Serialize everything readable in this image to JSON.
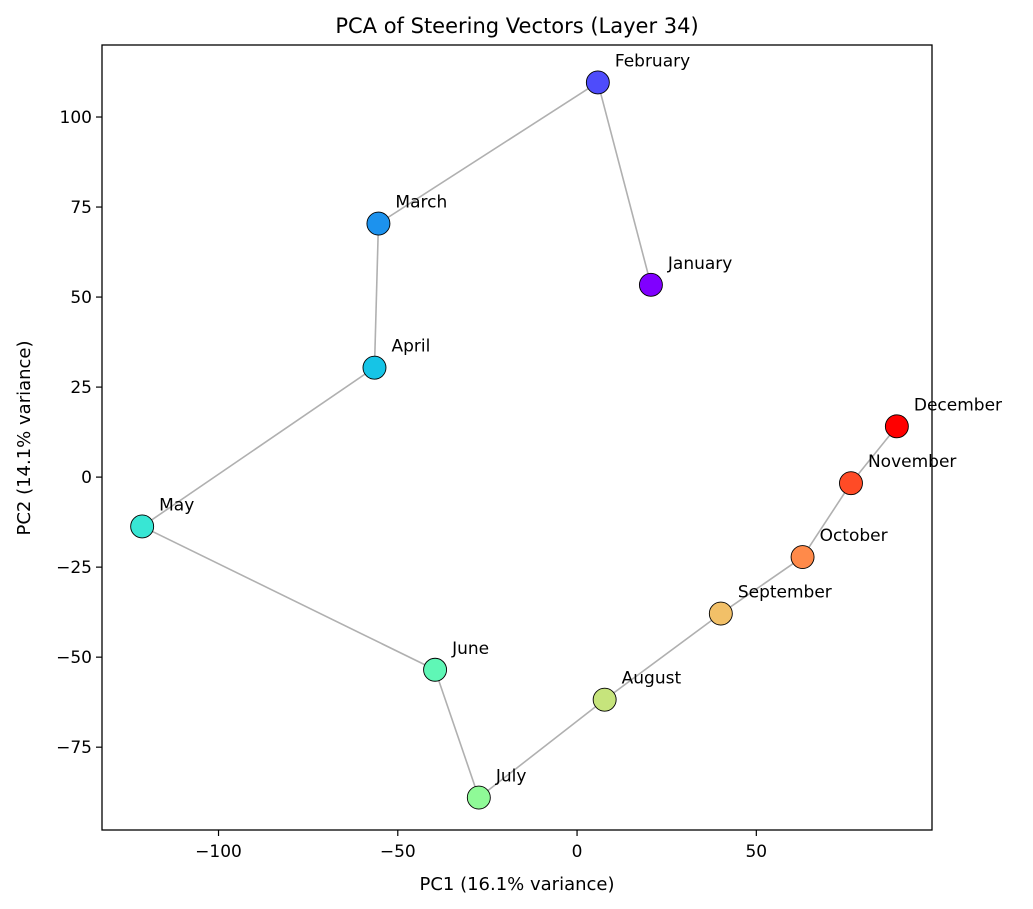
{
  "chart_data": {
    "type": "scatter",
    "title": "PCA of Steering Vectors (Layer 34)",
    "xlabel": "PC1 (16.1% variance)",
    "ylabel": "PC2 (14.1% variance)",
    "xlim": [
      -132.5,
      99
    ],
    "ylim": [
      -98,
      120
    ],
    "xticks": [
      -100,
      -50,
      0,
      50
    ],
    "xtick_labels": [
      "−100",
      "−50",
      "0",
      "50"
    ],
    "yticks": [
      -75,
      -50,
      -25,
      0,
      25,
      50,
      75,
      100
    ],
    "ytick_labels": [
      "−75",
      "−50",
      "−25",
      "0",
      "25",
      "50",
      "75",
      "100"
    ],
    "grid": false,
    "connect_in_order": true,
    "line_color": "#b0b0b0",
    "points": [
      {
        "label": "January",
        "x": 20.6,
        "y": 53.4,
        "color": "#8000ff"
      },
      {
        "label": "February",
        "x": 5.8,
        "y": 109.6,
        "color": "#4e4cfb"
      },
      {
        "label": "March",
        "x": -55.4,
        "y": 70.4,
        "color": "#1c92ee"
      },
      {
        "label": "April",
        "x": -56.5,
        "y": 30.4,
        "color": "#16c4e6"
      },
      {
        "label": "May",
        "x": -121.3,
        "y": -13.7,
        "color": "#38e6d4"
      },
      {
        "label": "June",
        "x": -39.6,
        "y": -53.5,
        "color": "#5ff7b6"
      },
      {
        "label": "July",
        "x": -27.4,
        "y": -89.0,
        "color": "#8ffa97"
      },
      {
        "label": "August",
        "x": 7.7,
        "y": -61.8,
        "color": "#c6e47c"
      },
      {
        "label": "September",
        "x": 40.1,
        "y": -37.9,
        "color": "#f2c068"
      },
      {
        "label": "October",
        "x": 62.9,
        "y": -22.2,
        "color": "#ff8a4a"
      },
      {
        "label": "November",
        "x": 76.4,
        "y": -1.7,
        "color": "#ff4b26"
      },
      {
        "label": "December",
        "x": 89.2,
        "y": 14.1,
        "color": "#ff0000"
      }
    ]
  }
}
